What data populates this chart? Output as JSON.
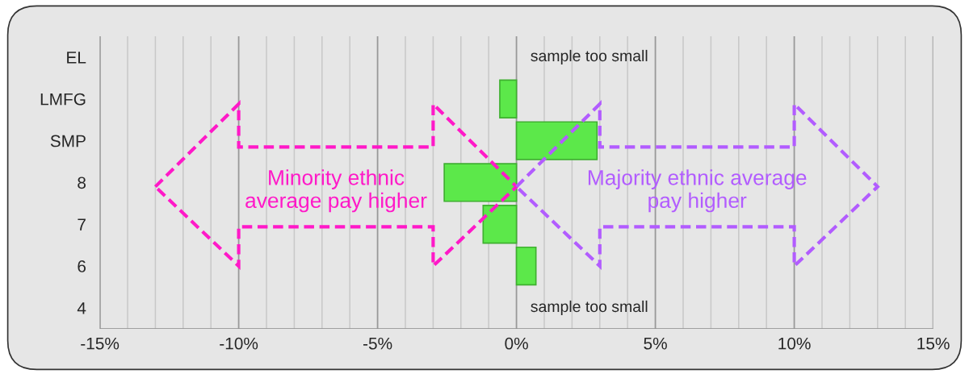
{
  "chart_data": {
    "type": "bar",
    "orientation": "horizontal",
    "categories": [
      "EL",
      "LMFG",
      "SMP",
      "8",
      "7",
      "6",
      "4"
    ],
    "series": [
      {
        "color": "#5ce84a",
        "values": [
          null,
          -0.6,
          2.9,
          -2.6,
          -1.2,
          0.7,
          null
        ]
      }
    ],
    "xlim": [
      -15,
      15
    ],
    "xticks": [
      {
        "value": -15,
        "label": "-15%"
      },
      {
        "value": -14,
        "label": null
      },
      {
        "value": -13,
        "label": null
      },
      {
        "value": -12,
        "label": null
      },
      {
        "value": -11,
        "label": null
      },
      {
        "value": -10,
        "label": "-10%"
      },
      {
        "value": -9,
        "label": null
      },
      {
        "value": -8,
        "label": null
      },
      {
        "value": -7,
        "label": null
      },
      {
        "value": -6,
        "label": null
      },
      {
        "value": -5,
        "label": "-5%"
      },
      {
        "value": -4,
        "label": null
      },
      {
        "value": -3,
        "label": null
      },
      {
        "value": -2,
        "label": null
      },
      {
        "value": -1,
        "label": null
      },
      {
        "value": 0,
        "label": "0%"
      },
      {
        "value": 1,
        "label": null
      },
      {
        "value": 2,
        "label": null
      },
      {
        "value": 3,
        "label": null
      },
      {
        "value": 4,
        "label": null
      },
      {
        "value": 5,
        "label": "5%"
      },
      {
        "value": 6,
        "label": null
      },
      {
        "value": 7,
        "label": null
      },
      {
        "value": 8,
        "label": null
      },
      {
        "value": 9,
        "label": null
      },
      {
        "value": 10,
        "label": "10%"
      },
      {
        "value": 11,
        "label": null
      },
      {
        "value": 12,
        "label": null
      },
      {
        "value": 13,
        "label": null
      },
      {
        "value": 14,
        "label": null
      },
      {
        "value": 15,
        "label": "15%"
      }
    ],
    "grid": "x",
    "annotations": [
      "sample too small",
      "sample too small",
      "Minority ethnic\naverage pay higher",
      "Majority ethnic average\npay higher"
    ]
  }
}
